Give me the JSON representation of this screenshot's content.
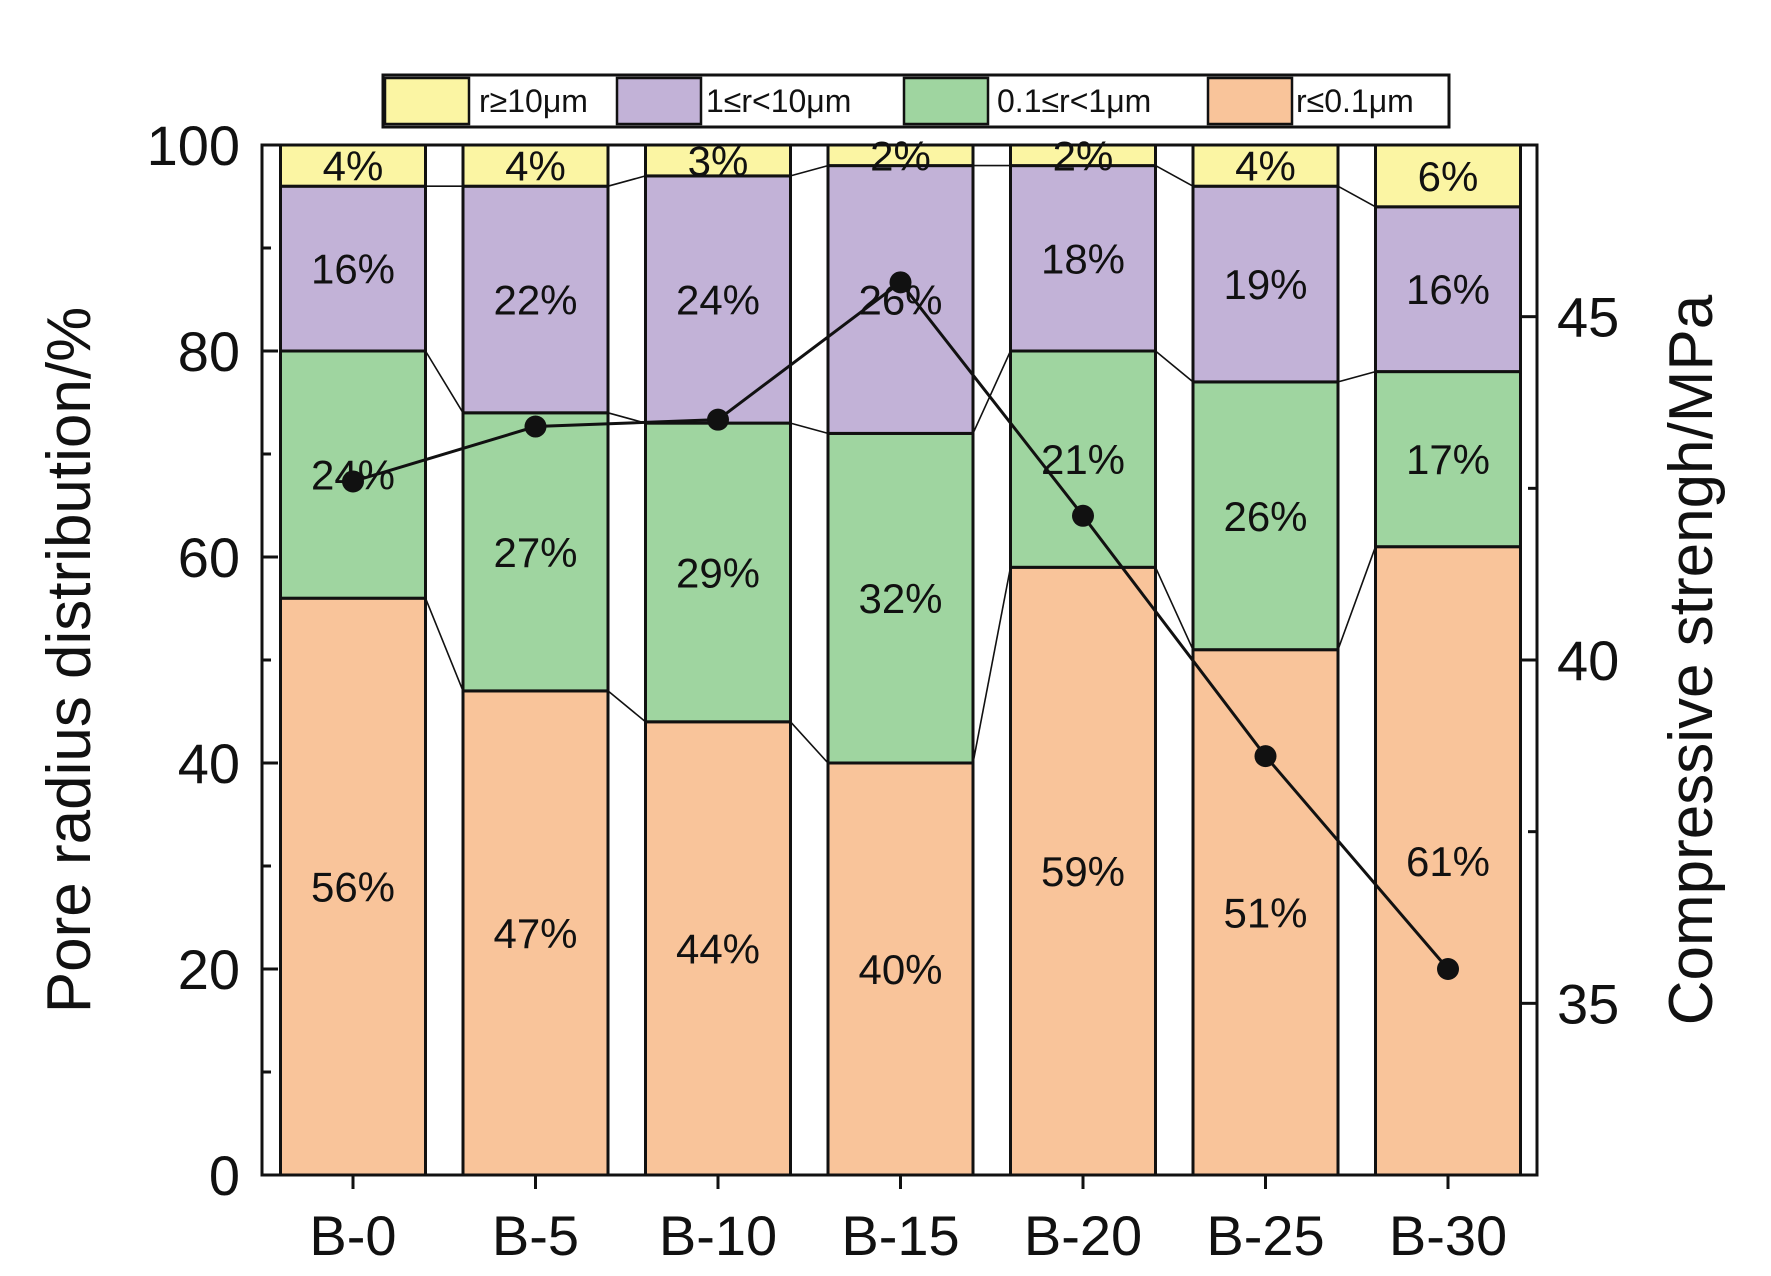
{
  "chart_data": {
    "type": "stacked-bar+line",
    "categories": [
      "B-0",
      "B-5",
      "B-10",
      "B-15",
      "B-20",
      "B-25",
      "B-30"
    ],
    "series": [
      {
        "name": "r≤0.1μm",
        "color": "#F9C49A",
        "values": [
          56,
          47,
          44,
          40,
          59,
          51,
          61
        ]
      },
      {
        "name": "0.1≤r<1μm",
        "color": "#9FD5A0",
        "values": [
          24,
          27,
          29,
          32,
          21,
          26,
          17
        ]
      },
      {
        "name": "1≤r<10μm",
        "color": "#C2B2D7",
        "values": [
          16,
          22,
          24,
          26,
          18,
          19,
          16
        ]
      },
      {
        "name": "r≥10μm",
        "color": "#FBF5A3",
        "values": [
          4,
          4,
          3,
          2,
          2,
          4,
          6
        ]
      }
    ],
    "segment_labels": [
      [
        "56%",
        "47%",
        "44%",
        "40%",
        "59%",
        "51%",
        "61%"
      ],
      [
        "24%",
        "27%",
        "29%",
        "32%",
        "21%",
        "26%",
        "17%"
      ],
      [
        "16%",
        "22%",
        "24%",
        "26%",
        "18%",
        "19%",
        "16%"
      ],
      [
        "4%",
        "4%",
        "3%",
        "2%",
        "2%",
        "4%",
        "6%"
      ]
    ],
    "legend": {
      "placement": "top",
      "entries": [
        {
          "label": "r≥10μm",
          "color": "#FBF5A3"
        },
        {
          "label": "1≤r<10μm",
          "color": "#C2B2D7"
        },
        {
          "label": "0.1≤r<1μm",
          "color": "#9FD5A0"
        },
        {
          "label": "r≤0.1μm",
          "color": "#F9C49A"
        }
      ]
    },
    "line_series": {
      "name": "Compressive strength",
      "axis": "right",
      "values": [
        42.6,
        43.4,
        43.5,
        45.5,
        42.1,
        38.6,
        35.5
      ]
    },
    "y_left": {
      "label": "Pore radius distribution/%",
      "ylim": [
        0,
        100
      ],
      "ticks": [
        0,
        20,
        40,
        60,
        80,
        100
      ],
      "tick_labels": [
        "0",
        "20",
        "40",
        "60",
        "80",
        "100"
      ]
    },
    "y_right": {
      "label": "Compressive strengh/MPa",
      "ylim": [
        32.5,
        47.5
      ],
      "ticks": [
        35,
        40,
        45
      ],
      "tick_labels": [
        "35",
        "40",
        "45"
      ]
    },
    "grid": false
  }
}
